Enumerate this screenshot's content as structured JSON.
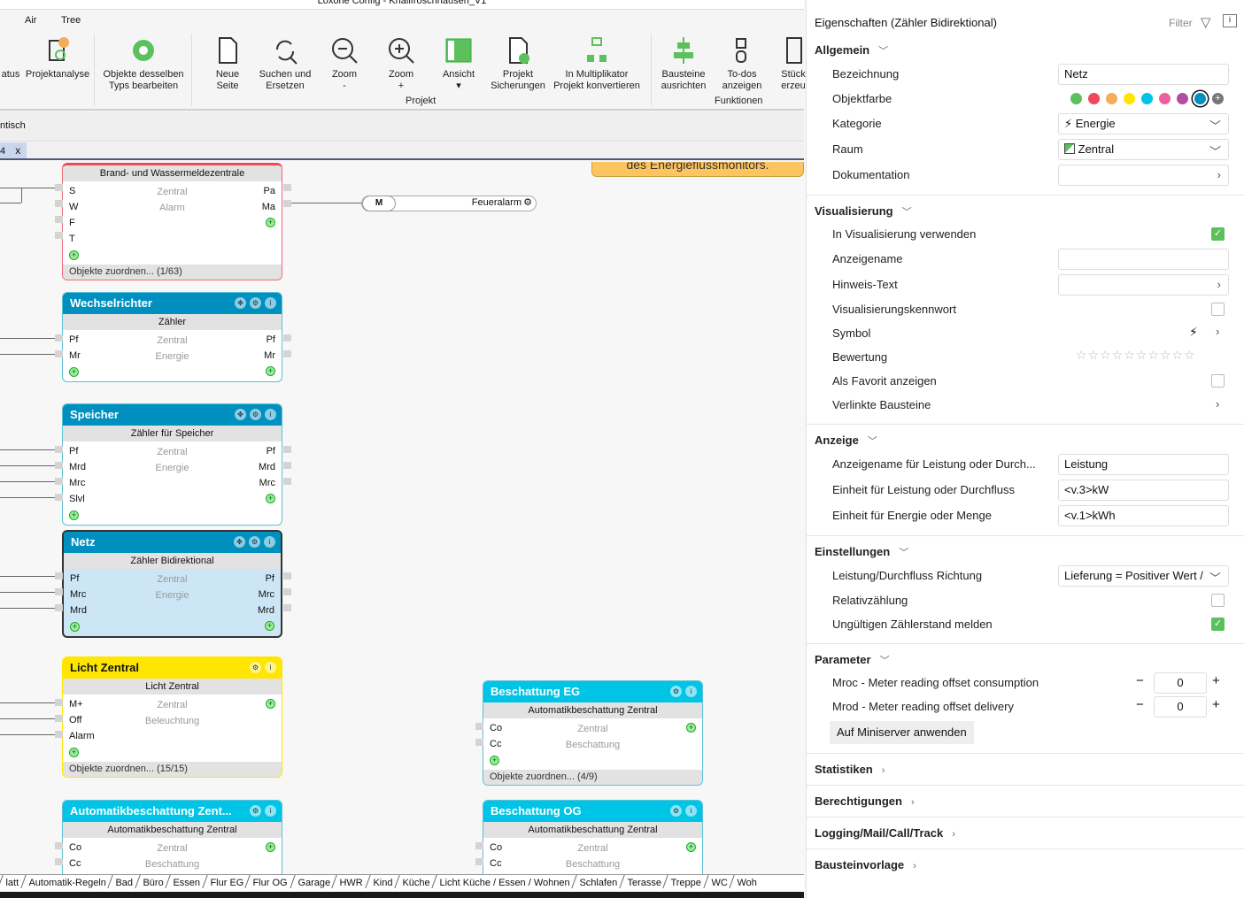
{
  "window": {
    "title": "Loxone Config - Knallfroschhausen_V1"
  },
  "menu_tabs": [
    "Air",
    "Tree"
  ],
  "ribbon": {
    "buttons": [
      {
        "id": "status",
        "label": "atus"
      },
      {
        "id": "projektanalyse",
        "label": "Projektanalyse"
      },
      {
        "id": "objekte",
        "label": "Objekte desselben\nTyps bearbeiten"
      },
      {
        "id": "neue-seite",
        "label": "Neue\nSeite"
      },
      {
        "id": "suchen",
        "label": "Suchen und\nErsetzen"
      },
      {
        "id": "zoom-out",
        "label": "Zoom\n-"
      },
      {
        "id": "zoom-in",
        "label": "Zoom\n+"
      },
      {
        "id": "ansicht",
        "label": "Ansicht\n▾"
      },
      {
        "id": "sicherungen",
        "label": "Projekt\nSicherungen"
      },
      {
        "id": "multiplikator",
        "label": "In Multiplikator\nProjekt konvertieren"
      },
      {
        "id": "ausrichten",
        "label": "Bausteine\nausrichten"
      },
      {
        "id": "todos",
        "label": "To-dos\nanzeigen"
      },
      {
        "id": "stueck",
        "label": "Stück\nerzeu"
      }
    ],
    "groups": {
      "projekt": "Projekt",
      "funktionen": "Funktionen"
    }
  },
  "bar2_text": "ntisch",
  "doc_tab": {
    "label": "4",
    "close": "x"
  },
  "canvas": {
    "note": "des Energieflussmonitors.",
    "memory_flag": {
      "label": "M",
      "name": "Feueralarm"
    },
    "blocks": [
      {
        "id": "brand",
        "title": "",
        "subtitle": "Brand- und Wassermeldezentrale",
        "room": "Zentral",
        "category": "Alarm",
        "inputs": [
          "S",
          "W",
          "F",
          "T"
        ],
        "outputs": [
          "Pa",
          "Ma"
        ],
        "footer": "Objekte zuordnen... (1/63)",
        "color": "#ffffff",
        "icons": []
      },
      {
        "id": "wechselrichter",
        "title": "Wechselrichter",
        "subtitle": "Zähler",
        "room": "Zentral",
        "category": "Energie",
        "inputs": [
          "Pf",
          "Mr"
        ],
        "outputs": [
          "Pf",
          "Mr"
        ],
        "footer": "",
        "color": "#0090c0",
        "icons": [
          "✥",
          "⚙",
          "i"
        ]
      },
      {
        "id": "speicher",
        "title": "Speicher",
        "subtitle": "Zähler für Speicher",
        "room": "Zentral",
        "category": "Energie",
        "inputs": [
          "Pf",
          "Mrd",
          "Mrc",
          "Slvl"
        ],
        "outputs": [
          "Pf",
          "Mrd",
          "Mrc"
        ],
        "footer": "",
        "color": "#0090c0",
        "icons": [
          "✥",
          "⚙",
          "i"
        ]
      },
      {
        "id": "netz",
        "title": "Netz",
        "subtitle": "Zähler Bidirektional",
        "room": "Zentral",
        "category": "Energie",
        "inputs": [
          "Pf",
          "Mrc",
          "Mrd"
        ],
        "outputs": [
          "Pf",
          "Mrc",
          "Mrd"
        ],
        "footer": "",
        "color": "#0090c0",
        "icons": [
          "✥",
          "⚙",
          "i"
        ],
        "selected": true
      },
      {
        "id": "licht",
        "title": "Licht Zentral",
        "subtitle": "Licht Zentral",
        "room": "Zentral",
        "category": "Beleuchtung",
        "inputs": [
          "M+",
          "Off",
          "Alarm"
        ],
        "outputs": [],
        "footer": "Objekte zuordnen... (15/15)",
        "color": "#ffe600",
        "dark": true,
        "icons": [
          "⚙",
          "i"
        ]
      },
      {
        "id": "autobesch",
        "title": "Automatikbeschattung  Zent...",
        "subtitle": "Automatikbeschattung Zentral",
        "room": "Zentral",
        "category": "Beschattung",
        "inputs": [
          "Co",
          "Cc"
        ],
        "outputs": [],
        "footer": "",
        "color": "#00c4e6",
        "icons": [
          "⚙",
          "i"
        ]
      },
      {
        "id": "besch-eg",
        "title": "Beschattung EG",
        "subtitle": "Automatikbeschattung Zentral",
        "room": "Zentral",
        "category": "Beschattung",
        "inputs": [
          "Co",
          "Cc"
        ],
        "outputs": [],
        "footer": "Objekte zuordnen... (4/9)",
        "color": "#00c4e6",
        "icons": [
          "⚙",
          "i"
        ]
      },
      {
        "id": "besch-og",
        "title": "Beschattung OG",
        "subtitle": "Automatikbeschattung Zentral",
        "room": "Zentral",
        "category": "Beschattung",
        "inputs": [
          "Co",
          "Cc"
        ],
        "outputs": [],
        "footer": "",
        "color": "#00c4e6",
        "icons": [
          "⚙",
          "i"
        ]
      }
    ]
  },
  "page_tabs": [
    "latt",
    "Automatik-Regeln",
    "Bad",
    "Büro",
    "Essen",
    "Flur EG",
    "Flur OG",
    "Garage",
    "HWR",
    "Kind",
    "Küche",
    "Licht Küche / Essen / Wohnen",
    "Schlafen",
    "Terasse",
    "Treppe",
    "WC",
    "Woh"
  ],
  "panel": {
    "title": "Eigenschaften (Zähler Bidirektional)",
    "filter": "Filter",
    "sections": {
      "allgemein": "Allgemein",
      "visualisierung": "Visualisierung",
      "anzeige": "Anzeige",
      "einstellungen": "Einstellungen",
      "parameter": "Parameter",
      "statistiken": "Statistiken",
      "berechtigungen": "Berechtigungen",
      "logging": "Logging/Mail/Call/Track",
      "vorlage": "Bausteinvorlage"
    },
    "labels": {
      "bezeichnung": "Bezeichnung",
      "objektfarbe": "Objektfarbe",
      "kategorie": "Kategorie",
      "raum": "Raum",
      "dokumentation": "Dokumentation",
      "in_visu": "In Visualisierung verwenden",
      "anzeigename": "Anzeigename",
      "hinweis": "Hinweis-Text",
      "kennwort": "Visualisierungskennwort",
      "symbol": "Symbol",
      "bewertung": "Bewertung",
      "favorit": "Als Favorit anzeigen",
      "verlinkte": "Verlinkte Bausteine",
      "anz_leistung": "Anzeigename für Leistung oder Durch...",
      "einheit_leistung": "Einheit für Leistung oder Durchfluss",
      "einheit_energie": "Einheit für Energie oder Menge",
      "richtung": "Leistung/Durchfluss Richtung",
      "relativ": "Relativzählung",
      "ungueltig": "Ungültigen Zählerstand melden",
      "mroc": "Mroc - Meter reading offset consumption",
      "mrod": "Mrod - Meter reading offset delivery"
    },
    "values": {
      "bezeichnung": "Netz",
      "kategorie": "Energie",
      "raum": "Zentral",
      "anz_leistung": "Leistung",
      "einheit_leistung": "<v.3>kW",
      "einheit_energie": "<v.1>kWh",
      "richtung": "Lieferung = Positiver Wert /",
      "mroc": "0",
      "mrod": "0"
    },
    "checks": {
      "in_visu": true,
      "kennwort": false,
      "favorit": false,
      "relativ": false,
      "ungueltig": true
    },
    "rating": 0,
    "rating_max": 10,
    "colors": [
      "#5cc15c",
      "#f0475a",
      "#f6ac5a",
      "#ffe600",
      "#00c4e6",
      "#ef5ea0",
      "#b14ea0",
      "#0090c0"
    ],
    "selected_color": "#0090c0",
    "apply_button": "Auf Miniserver anwenden"
  }
}
